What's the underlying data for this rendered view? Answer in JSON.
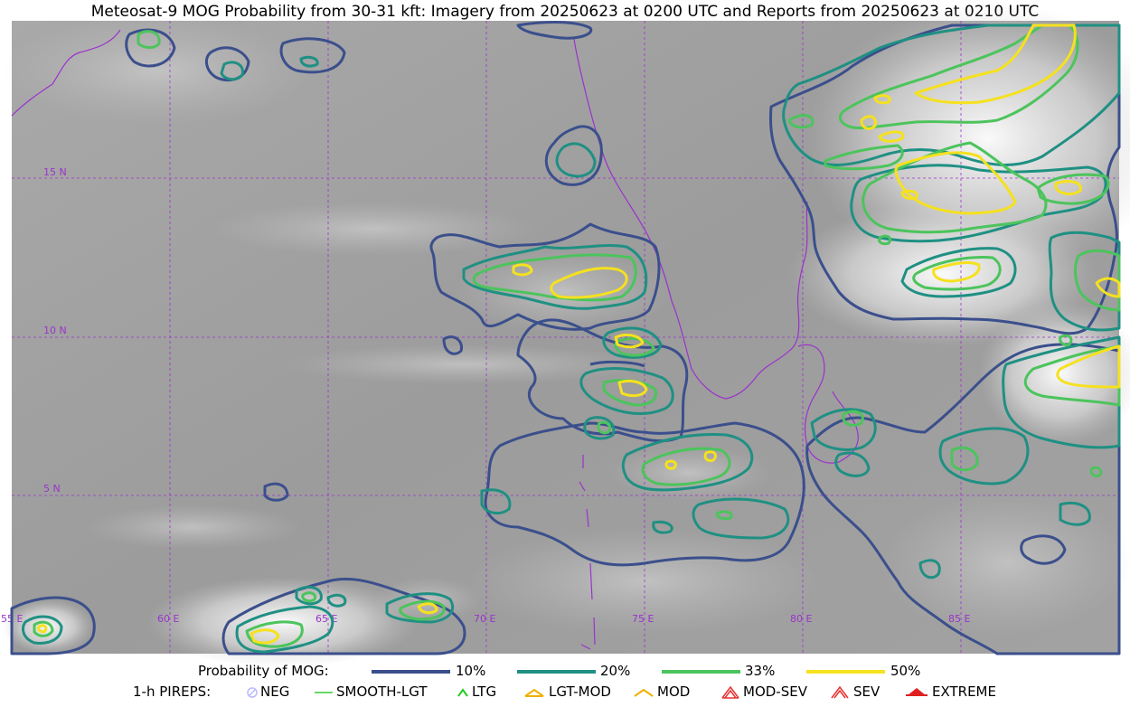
{
  "title": "Meteosat-9 MOG Probability from 30-31 kft: Imagery from 20250623 at 0200 UTC and Reports from 20250623 at 0210 UTC",
  "map": {
    "lat_labels": [
      "15 N",
      "10 N",
      "5 N"
    ],
    "lon_labels": [
      "55 E",
      "60 E",
      "65 E",
      "70 E",
      "75 E",
      "80 E",
      "85 E"
    ],
    "grid_color": "#9a33cc",
    "coast_color": "#9a33cc"
  },
  "legend": {
    "prob_title": "Probability of MOG:",
    "prob_levels": [
      {
        "label": "10%",
        "color": "#3b4f8c"
      },
      {
        "label": "20%",
        "color": "#1f9083"
      },
      {
        "label": "33%",
        "color": "#4cc45c"
      },
      {
        "label": "50%",
        "color": "#f5e11e"
      }
    ],
    "pirep_title": "1-h PIREPS:",
    "pireps": [
      {
        "label": "NEG",
        "icon": "neg-icon",
        "color": "#b9b9ff"
      },
      {
        "label": "SMOOTH-LGT",
        "icon": "smooth-lgt-icon",
        "color": "#33cc33"
      },
      {
        "label": "LTG",
        "icon": "ltg-icon",
        "color": "#22cc22"
      },
      {
        "label": "LGT-MOD",
        "icon": "lgt-mod-icon",
        "color": "#f0b000"
      },
      {
        "label": "MOD",
        "icon": "mod-icon",
        "color": "#f0b000"
      },
      {
        "label": "MOD-SEV",
        "icon": "mod-sev-icon",
        "color": "#e83030"
      },
      {
        "label": "SEV",
        "icon": "sev-icon",
        "color": "#e83030"
      },
      {
        "label": "EXTREME",
        "icon": "extreme-icon",
        "color": "#e02020"
      }
    ]
  }
}
